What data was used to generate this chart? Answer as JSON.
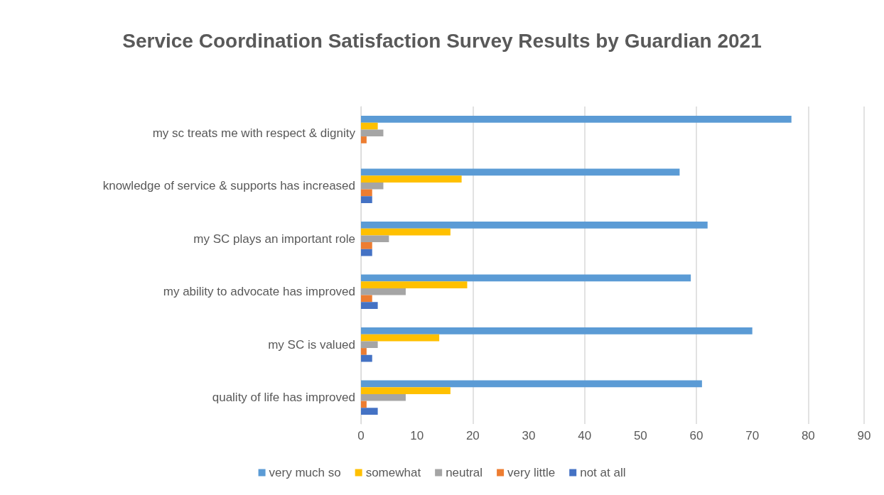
{
  "chart_data": {
    "type": "bar",
    "orientation": "horizontal",
    "title": "Service Coordination Satisfaction Survey Results by Guardian 2021",
    "categories": [
      "my sc treats me with respect & dignity",
      "knowledge of service & supports has increased",
      "my SC plays an important role",
      "my ability to advocate has improved",
      "my SC is valued",
      "quality of life has improved"
    ],
    "series": [
      {
        "name": "very much so",
        "color": "#5b9bd5",
        "values": [
          77,
          57,
          62,
          59,
          70,
          61
        ]
      },
      {
        "name": "somewhat",
        "color": "#ffc000",
        "values": [
          3,
          18,
          16,
          19,
          14,
          16
        ]
      },
      {
        "name": "neutral",
        "color": "#a5a5a5",
        "values": [
          4,
          4,
          5,
          8,
          3,
          8
        ]
      },
      {
        "name": "very little",
        "color": "#ed7d31",
        "values": [
          1,
          2,
          2,
          2,
          1,
          1
        ]
      },
      {
        "name": "not at all",
        "color": "#4472c4",
        "values": [
          0,
          2,
          2,
          3,
          2,
          3
        ]
      }
    ],
    "xlim": [
      0,
      90
    ],
    "xticks": [
      0,
      10,
      20,
      30,
      40,
      50,
      60,
      70,
      80,
      90
    ],
    "grid": "x",
    "legend": "bottom"
  }
}
